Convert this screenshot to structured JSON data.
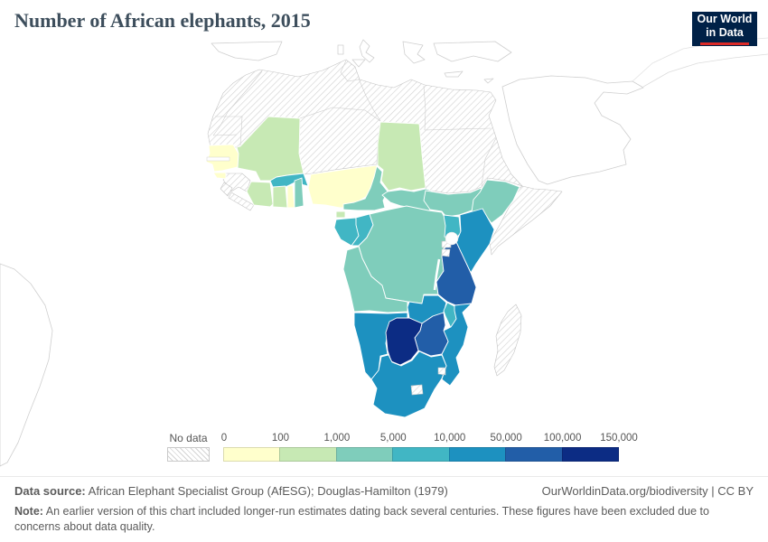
{
  "header": {
    "title": "Number of African elephants, 2015",
    "logo": {
      "line1": "Our World",
      "line2": "in Data"
    }
  },
  "legend": {
    "no_data_label": "No data",
    "tick_labels": [
      "0",
      "100",
      "1,000",
      "5,000",
      "10,000",
      "50,000",
      "100,000",
      "150,000"
    ],
    "bin_colors": [
      "#ffffcc",
      "#c7e9b4",
      "#7fcdbb",
      "#41b6c4",
      "#1d91c0",
      "#225ea8",
      "#0c2c84"
    ]
  },
  "footer": {
    "source_label": "Data source:",
    "source_text": " African Elephant Specialist Group (AfESG); Douglas-Hamilton (1979)",
    "citation": "OurWorldinData.org/biodiversity | CC BY",
    "note_label": "Note:",
    "note_text": " An earlier version of this chart included longer-run estimates dating back several centuries. These figures have been excluded due to concerns about data quality."
  },
  "chart_data": {
    "type": "choropleth",
    "title": "Number of African elephants, 2015",
    "unit": "number of elephants",
    "legend_position": "bottom",
    "bin_ranges": [
      "0–100",
      "100–1,000",
      "1,000–5,000",
      "5,000–10,000",
      "10,000–50,000",
      "50,000–100,000",
      "100,000–150,000"
    ],
    "countries": [
      {
        "id": "senegal",
        "name": "Senegal",
        "bin": 0,
        "range": "0–100"
      },
      {
        "id": "guinea-bissau",
        "name": "Guinea-Bissau",
        "bin": 0,
        "range": "0–100"
      },
      {
        "id": "togo",
        "name": "Togo",
        "bin": 0,
        "range": "0–100"
      },
      {
        "id": "nigeria",
        "name": "Nigeria",
        "bin": 0,
        "range": "0–100"
      },
      {
        "id": "mali",
        "name": "Mali",
        "bin": 1,
        "range": "100–1,000"
      },
      {
        "id": "chad",
        "name": "Chad",
        "bin": 1,
        "range": "100–1,000"
      },
      {
        "id": "cote-divoire",
        "name": "Côte d'Ivoire",
        "bin": 1,
        "range": "100–1,000"
      },
      {
        "id": "ghana",
        "name": "Ghana",
        "bin": 1,
        "range": "100–1,000"
      },
      {
        "id": "equatorial-guinea",
        "name": "Equatorial Guinea",
        "bin": 1,
        "range": "100–1,000"
      },
      {
        "id": "benin",
        "name": "Benin",
        "bin": 2,
        "range": "1,000–5,000"
      },
      {
        "id": "cameroon",
        "name": "Cameroon",
        "bin": 2,
        "range": "1,000–5,000"
      },
      {
        "id": "central-african-republic",
        "name": "Central African Republic",
        "bin": 2,
        "range": "1,000–5,000"
      },
      {
        "id": "south-sudan",
        "name": "South Sudan",
        "bin": 2,
        "range": "1,000–5,000"
      },
      {
        "id": "ethiopia",
        "name": "Ethiopia",
        "bin": 2,
        "range": "1,000–5,000"
      },
      {
        "id": "drc",
        "name": "Democratic Republic of Congo",
        "bin": 2,
        "range": "1,000–5,000"
      },
      {
        "id": "angola",
        "name": "Angola",
        "bin": 2,
        "range": "1,000–5,000"
      },
      {
        "id": "burkina-faso",
        "name": "Burkina Faso",
        "bin": 3,
        "range": "5,000–10,000"
      },
      {
        "id": "gabon",
        "name": "Gabon",
        "bin": 3,
        "range": "5,000–10,000"
      },
      {
        "id": "congo",
        "name": "Congo",
        "bin": 3,
        "range": "5,000–10,000"
      },
      {
        "id": "uganda",
        "name": "Uganda",
        "bin": 3,
        "range": "5,000–10,000"
      },
      {
        "id": "malawi",
        "name": "Malawi",
        "bin": 3,
        "range": "5,000–10,000"
      },
      {
        "id": "kenya",
        "name": "Kenya",
        "bin": 4,
        "range": "10,000–50,000"
      },
      {
        "id": "zambia",
        "name": "Zambia",
        "bin": 4,
        "range": "10,000–50,000"
      },
      {
        "id": "namibia",
        "name": "Namibia",
        "bin": 4,
        "range": "10,000–50,000"
      },
      {
        "id": "south-africa",
        "name": "South Africa",
        "bin": 4,
        "range": "10,000–50,000"
      },
      {
        "id": "mozambique",
        "name": "Mozambique",
        "bin": 4,
        "range": "10,000–50,000"
      },
      {
        "id": "tanzania",
        "name": "Tanzania",
        "bin": 5,
        "range": "50,000–100,000"
      },
      {
        "id": "zimbabwe",
        "name": "Zimbabwe",
        "bin": 5,
        "range": "50,000–100,000"
      },
      {
        "id": "botswana",
        "name": "Botswana",
        "bin": 6,
        "range": "100,000–150,000"
      }
    ],
    "no_data_countries": [
      "Morocco",
      "Western Sahara",
      "Mauritania",
      "Algeria",
      "Tunisia",
      "Libya",
      "Egypt",
      "Niger",
      "Sudan",
      "Eritrea",
      "Djibouti",
      "Somalia",
      "Guinea",
      "Sierra Leone",
      "Liberia",
      "Rwanda",
      "Burundi",
      "Madagascar",
      "Lesotho",
      "Eswatini"
    ]
  }
}
